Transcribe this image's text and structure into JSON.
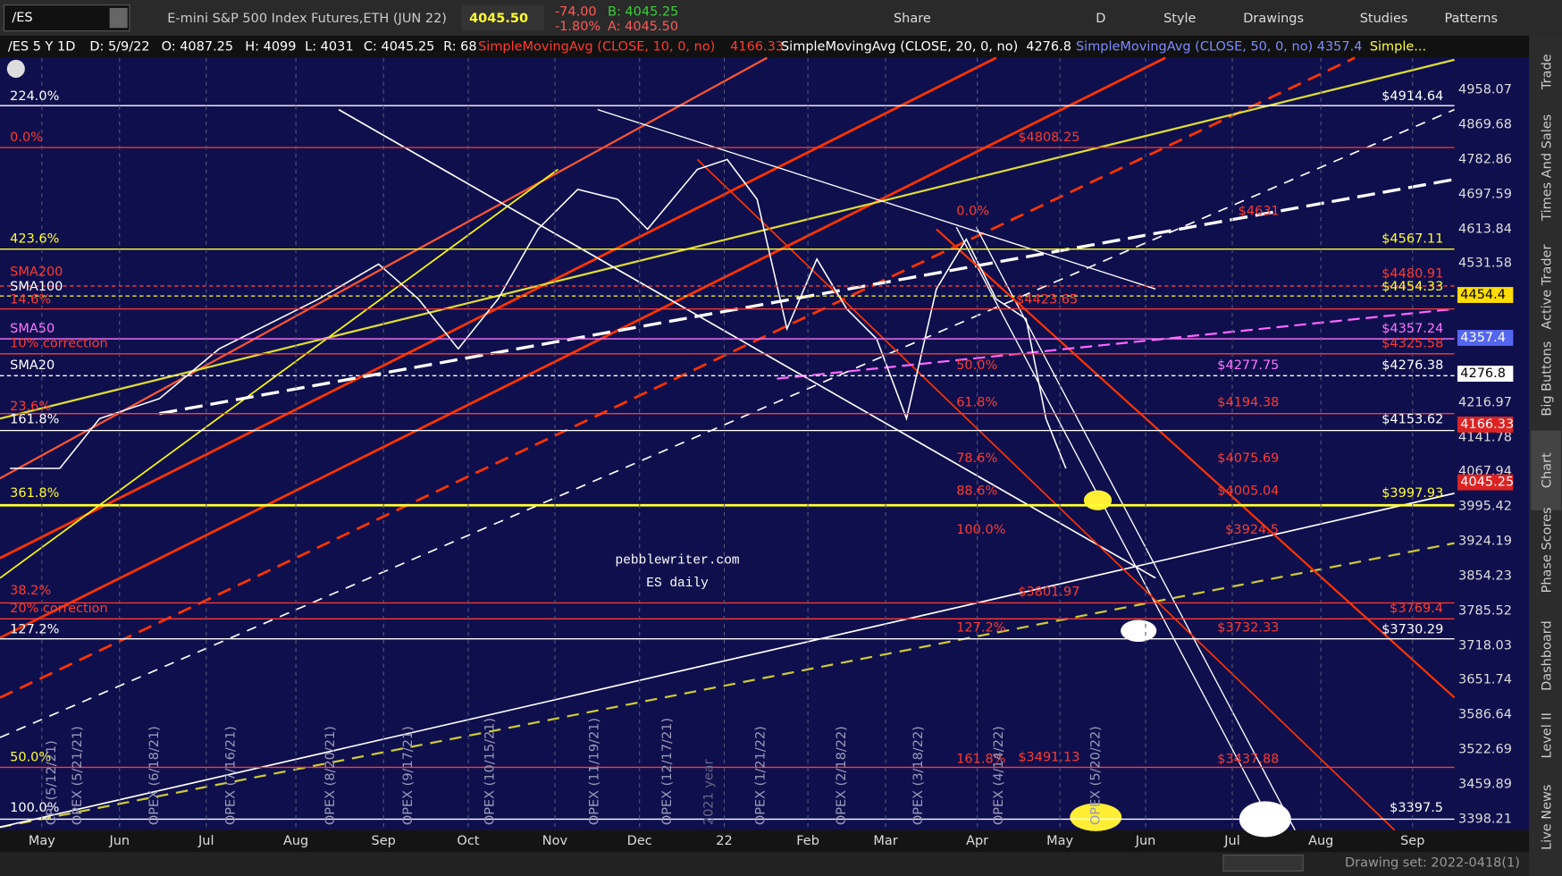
{
  "toolbar": {
    "symbol": "/ES",
    "description": "E-mini S&P 500 Index Futures,ETH (JUN 22)",
    "last": "4045.50",
    "change": "-74.00",
    "change_percent": "-1.80%",
    "bid": "B: 4045.25",
    "ask": "A: 4045.50",
    "buttons": [
      "Share",
      "D",
      "Style",
      "Drawings",
      "Studies",
      "Patterns"
    ]
  },
  "legend": {
    "items": [
      "/ES 5 Y 1D",
      "D: 5/9/22",
      "O: 4087.25",
      "H: 4099",
      "L: 4031",
      "C: 4045.25",
      "R: 68"
    ],
    "studies": [
      {
        "name": "SimpleMovingAvg (CLOSE, 10, 0, no)",
        "value": "4166.33"
      },
      {
        "name": "SimpleMovingAvg (CLOSE, 20, 0, no)",
        "value": "4276.8"
      },
      {
        "name": "SimpleMovingAvg (CLOSE, 50, 0, no)",
        "value": "4357.4"
      },
      {
        "name": "Simple..."
      }
    ]
  },
  "price_axis": {
    "labels": [
      "4958.07",
      "4869.68",
      "4782.86",
      "4697.59",
      "4613.84",
      "4531.58",
      "4216.97",
      "4141.78",
      "4067.94",
      "3995.42",
      "3924.19",
      "3854.23",
      "3785.52",
      "3718.03",
      "3651.74",
      "3586.64",
      "3522.69",
      "3459.89",
      "3398.21"
    ],
    "badges": [
      "4454.4",
      "4357.4",
      "4276.8",
      "4166.33",
      "4045.25"
    ]
  },
  "left_labels": [
    "224.0%",
    "0.0%",
    "423.6%",
    "SMA200",
    "SMA100",
    "14.6%",
    "SMA50",
    "10% correction",
    "SMA20",
    "23.6%",
    "161.8%",
    "361.8%",
    "38.2%",
    "20% correction",
    "127.2%",
    "50.0%",
    "100.0%"
  ],
  "right_labels": [
    "$4914.64",
    "$4808.25",
    "$4631",
    "$4567.11",
    "$4480.91",
    "$4454.33",
    "$4423.65",
    "$4357.24",
    "$4325.58",
    "$4277.75",
    "$4276.38",
    "$4194.38",
    "$4153.62",
    "$4075.69",
    "$4005.04",
    "$3997.93",
    "$3924.5",
    "$3801.97",
    "$3769.4",
    "$3732.33",
    "$3730.29",
    "$3491.13",
    "$3437.88",
    "$3397.5"
  ],
  "fib_labels": [
    "0.0%",
    "50.0%",
    "61.8%",
    "78.6%",
    "88.6%",
    "100.0%",
    "127.2%",
    "161.8%"
  ],
  "time_axis": [
    "May",
    "Jun",
    "Jul",
    "Aug",
    "Sep",
    "Oct",
    "Nov",
    "Dec",
    "22",
    "Feb",
    "Mar",
    "Apr",
    "May",
    "Jun",
    "Jul",
    "Aug",
    "Sep"
  ],
  "event_labels": [
    "CPI (5/12/21)",
    "OPEX (5/21/21)",
    "OPEX (6/18/21)",
    "OPEX (7/16/21)",
    "OPEX (8/20/21)",
    "OPEX (9/17/21)",
    "OPEX (10/15/21)",
    "OPEX (11/19/21)",
    "OPEX (12/17/21)",
    "2021 year",
    "OPEX (1/21/22)",
    "OPEX (2/18/22)",
    "OPEX (3/18/22)",
    "OPEX (4/14/22)",
    "OPEX (5/20/22)"
  ],
  "watermark": [
    "pebblewriter.com",
    "ES daily"
  ],
  "footer": "Drawing set: 2022-0418(1)",
  "side_tabs": [
    "Trade",
    "Times And Sales",
    "Active Trader",
    "Big Buttons",
    "Chart",
    "Phase Scores",
    "Dashboard",
    "Level II",
    "Live News"
  ]
}
